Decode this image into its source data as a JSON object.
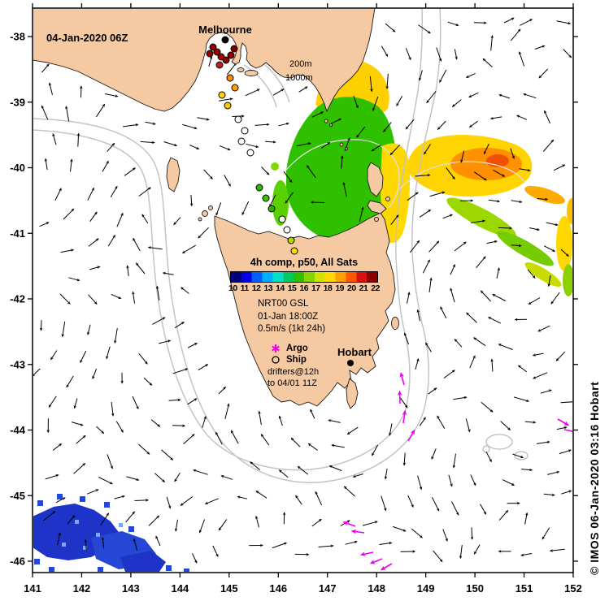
{
  "map": {
    "title_date": "04-Jan-2020 06Z",
    "city_labels": {
      "melbourne": "Melbourne",
      "hobart": "Hobart"
    },
    "depth_labels": {
      "c200": "200m",
      "c1000": "1000m"
    },
    "copyright": "© IMOS 06-Jan-2020 03:16 Hobart"
  },
  "axes": {
    "x_ticks": [
      "141",
      "142",
      "143",
      "144",
      "145",
      "146",
      "147",
      "148",
      "149",
      "150",
      "151",
      "152"
    ],
    "y_ticks": [
      "-38",
      "-39",
      "-40",
      "-41",
      "-42",
      "-43",
      "-44",
      "-45",
      "-46"
    ]
  },
  "legend": {
    "title": "4h comp, p50, All Sats",
    "colorbar_ticks": [
      "10",
      "11",
      "12",
      "13",
      "14",
      "15",
      "16",
      "17",
      "18",
      "19",
      "20",
      "21",
      "22"
    ],
    "product_line1": "NRT00 GSL",
    "product_line2": "01-Jan 18:00Z",
    "product_line3": "0.5m/s (1kt 24h)",
    "argo_label": "Argo",
    "ship_label": "Ship",
    "drifters_line1": "drifters@12h",
    "drifters_line2": "to 04/01 11Z"
  },
  "colors": {
    "land": "#f5c9a2",
    "ocean": "#ffffff",
    "contour": "#c4c4c4",
    "vector": "#000000",
    "drifter_track": "#ee00ee",
    "sst_palette": [
      "#000080",
      "#0000e0",
      "#0060ff",
      "#00b0ff",
      "#00e0c8",
      "#00c860",
      "#30c000",
      "#88d400",
      "#d0e400",
      "#ffd800",
      "#ffa000",
      "#ff5800",
      "#d81010",
      "#8b0000"
    ]
  },
  "chart_data": {
    "type": "map",
    "lon_range": [
      141,
      152
    ],
    "lat_range": [
      -46,
      -38
    ],
    "colorbar_range": [
      10,
      22
    ]
  }
}
